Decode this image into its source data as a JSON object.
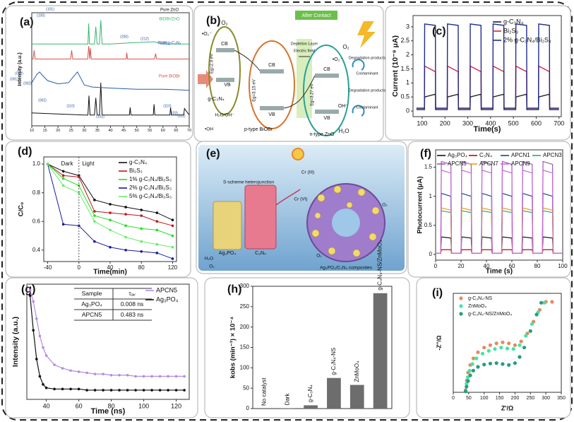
{
  "chart_data": [
    {
      "type": "line",
      "label": "(a)",
      "ylabel": "Intensity (a.u.)",
      "legend": "inline",
      "xlim": [
        10,
        70
      ],
      "ylim": [
        0,
        105
      ],
      "xticks": [
        10,
        15,
        20,
        25,
        30,
        35,
        40,
        45,
        50,
        55,
        60,
        65,
        70
      ],
      "series": [
        {
          "name": "Pure ZnO",
          "color": "#111111",
          "x": [
            10,
            20,
            30,
            31.4,
            31.8,
            32.2,
            33.9,
            34.4,
            34.9,
            35.8,
            36.3,
            36.8,
            40,
            47.2,
            47.5,
            47.8,
            56.3,
            56.6,
            56.9,
            62.6,
            62.9,
            63.2,
            66,
            67.9,
            68.2,
            70
          ],
          "values": [
            12,
            11,
            10,
            10,
            28,
            10,
            10,
            26,
            10,
            10,
            40,
            10,
            10,
            10,
            17,
            10,
            10,
            20,
            10,
            10,
            17,
            10,
            10,
            10,
            16,
            10
          ]
        },
        {
          "name": "Pure g-C₃N₄",
          "color": "#2a5caa",
          "x": [
            10,
            11,
            12,
            13,
            14,
            16,
            20,
            24,
            26,
            27.4,
            28.5,
            30,
            33,
            40,
            50,
            60,
            70
          ],
          "values": [
            40,
            44,
            48,
            50,
            47,
            42,
            39,
            40,
            46,
            50,
            45,
            38,
            36,
            35,
            34,
            34,
            33
          ]
        },
        {
          "name": "Pure BiOBr",
          "color": "#d9534f",
          "x": [
            10,
            10.5,
            10.9,
            11.3,
            15,
            20,
            24.8,
            25.2,
            25.6,
            31.3,
            31.7,
            32.1,
            32.3,
            32.7,
            40,
            46,
            46.2,
            46.5,
            50,
            56.8,
            57.2,
            57.6,
            60,
            70
          ],
          "values": [
            62,
            62,
            70,
            62,
            62,
            62,
            62,
            70,
            62,
            62,
            74,
            62,
            72,
            62,
            62,
            62,
            68,
            62,
            62,
            62,
            67,
            62,
            62,
            62
          ]
        },
        {
          "name": "BiOBr/ZnO",
          "color": "#3cb371",
          "x": [
            10,
            20,
            25,
            31.4,
            31.7,
            32.0,
            33.9,
            34.4,
            34.9,
            35.8,
            36.3,
            36.8,
            40,
            47.5,
            56.6,
            60,
            70
          ],
          "values": [
            76,
            76,
            76,
            76,
            95,
            76,
            76,
            92,
            76,
            76,
            98,
            76,
            76,
            77,
            78,
            76,
            76
          ]
        }
      ],
      "annotations": [
        "(001)",
        "(012)",
        "(002)",
        "(100)",
        "(002)",
        "(101)",
        "(110)",
        "(102)",
        "(200)",
        "(212)",
        "(220)",
        "(110)",
        "(103)",
        "(112)"
      ]
    },
    {
      "type": "line",
      "label": "(c)",
      "xlabel": "Time(s)",
      "ylabel": "Current (10⁻⁸ μA)",
      "legend": "upper right",
      "xlim": [
        60,
        710
      ],
      "ylim": [
        -0.2,
        3.4
      ],
      "xticks": [
        100,
        200,
        300,
        400,
        500,
        600,
        700
      ],
      "yticks": [
        0,
        0.5,
        1,
        1.5,
        2,
        2.5,
        3
      ],
      "x": [
        75,
        110,
        111,
        158,
        159,
        210,
        211,
        258,
        259,
        310,
        311,
        358,
        359,
        410,
        411,
        458,
        459,
        510,
        511,
        558,
        559,
        610,
        611,
        658,
        659,
        700
      ],
      "series": [
        {
          "name": "g-C₃N₄",
          "color": "#222222",
          "values": [
            0.05,
            0.05,
            0.5,
            0.6,
            0.05,
            0.05,
            0.5,
            0.6,
            0.05,
            0.05,
            0.5,
            0.6,
            0.05,
            0.05,
            0.5,
            0.6,
            0.05,
            0.05,
            0.5,
            0.6,
            0.05,
            0.05,
            0.5,
            0.6,
            0.05,
            0.05
          ]
        },
        {
          "name": "Bi₂S₃",
          "color": "#d4213d",
          "values": [
            0.1,
            0.1,
            1.6,
            1.4,
            0.1,
            0.1,
            1.6,
            1.4,
            0.1,
            0.1,
            1.6,
            1.4,
            0.1,
            0.1,
            1.6,
            1.4,
            0.1,
            0.1,
            1.6,
            1.4,
            0.1,
            0.1,
            1.6,
            1.4,
            0.1,
            0.1
          ]
        },
        {
          "name": "2% g-C₃N₄/Bi₂S₃",
          "color": "#1f2d8a",
          "values": [
            0.1,
            0.1,
            3.1,
            3.05,
            0.1,
            0.1,
            3.1,
            3.05,
            0.1,
            0.1,
            3.1,
            3.05,
            0.1,
            0.1,
            3.1,
            3.05,
            0.1,
            0.1,
            3.1,
            3.05,
            0.1,
            0.1,
            3.1,
            3.05,
            0.1,
            0.1
          ]
        }
      ]
    },
    {
      "type": "line",
      "label": "(d)",
      "xlabel": "Time(min)",
      "ylabel": "C/C₀",
      "legend": "upper right",
      "markers": true,
      "xlim": [
        -45,
        125
      ],
      "ylim": [
        0.32,
        1.05
      ],
      "xticks": [
        -40,
        0,
        40,
        80,
        120
      ],
      "yticks": [
        0.4,
        0.6,
        0.8,
        {
          "value": 1,
          "label": "1.0"
        }
      ],
      "x": [
        -40,
        -20,
        0,
        20,
        40,
        60,
        80,
        100,
        120
      ],
      "series": [
        {
          "name": "g-C₃N₄",
          "color": "#111111",
          "values": [
            1.0,
            0.95,
            0.92,
            0.75,
            0.72,
            0.7,
            0.68,
            0.66,
            0.61
          ]
        },
        {
          "name": "Bi₂S₃",
          "color": "#c0161b",
          "values": [
            1.0,
            0.92,
            0.91,
            0.67,
            0.66,
            0.65,
            0.64,
            0.6,
            0.57
          ]
        },
        {
          "name": "1% g-C₃N₄/Bi₂S₃",
          "color": "#22dd22",
          "values": [
            1.0,
            0.9,
            0.85,
            0.64,
            0.61,
            0.57,
            0.55,
            0.54,
            0.5
          ]
        },
        {
          "name": "2% g-C₃N₄/Bi₂S₃",
          "color": "#1a1a9c",
          "values": [
            1.0,
            0.58,
            0.57,
            0.46,
            0.42,
            0.4,
            0.39,
            0.38,
            0.34
          ]
        },
        {
          "name": "5% g-C₃N₄/Bi₂S₃",
          "color": "#66ee66",
          "values": [
            1.0,
            0.85,
            0.8,
            0.6,
            0.54,
            0.49,
            0.46,
            0.44,
            0.42
          ]
        }
      ],
      "annotations": [
        "Dark",
        "Light"
      ]
    },
    {
      "type": "line",
      "label": "(f)",
      "xlabel": "Time (s)",
      "ylabel": "Photocurrent (μA)",
      "legend": "top",
      "xlim": [
        0,
        100
      ],
      "ylim": [
        -0.1,
        1.8
      ],
      "xticks": [
        0,
        20,
        40,
        60,
        80,
        100
      ],
      "yticks": [
        0,
        0.5,
        1,
        1.5
      ],
      "x": [
        0,
        4,
        4.5,
        12,
        12.5,
        20,
        20.5,
        28,
        28.5,
        36,
        36.5,
        44,
        44.5,
        52,
        52.5,
        60,
        60.5,
        68,
        68.5,
        76,
        76.5,
        84,
        84.5,
        92,
        92.5,
        100
      ],
      "series": [
        {
          "name": "Ag₃PO₄",
          "color": "#111111",
          "values": [
            0.02,
            0.02,
            0.3,
            0.28,
            0.02,
            0.02,
            0.3,
            0.28,
            0.02,
            0.02,
            0.3,
            0.28,
            0.02,
            0.02,
            0.3,
            0.28,
            0.02,
            0.02,
            0.3,
            0.28,
            0.02,
            0.02,
            0.3,
            0.28,
            0.02,
            0.02
          ]
        },
        {
          "name": "C₃N₄",
          "color": "#cc0000",
          "values": [
            0.02,
            0.02,
            0.08,
            0.08,
            0.02,
            0.02,
            0.08,
            0.08,
            0.02,
            0.02,
            0.08,
            0.08,
            0.02,
            0.02,
            0.08,
            0.08,
            0.02,
            0.02,
            0.08,
            0.08,
            0.02,
            0.02,
            0.08,
            0.08,
            0.02,
            0.02
          ]
        },
        {
          "name": "APCN1",
          "color": "#1f3f9f",
          "values": [
            0.02,
            0.02,
            1.05,
            1.0,
            0.02,
            0.02,
            1.05,
            1.0,
            0.02,
            0.02,
            1.05,
            1.0,
            0.02,
            0.02,
            1.05,
            1.0,
            0.02,
            0.02,
            1.05,
            1.0,
            0.02,
            0.02,
            1.05,
            1.0,
            0.02,
            0.02
          ]
        },
        {
          "name": "APCN3",
          "color": "#2aa198",
          "values": [
            0.02,
            0.02,
            0.75,
            0.72,
            0.02,
            0.02,
            0.75,
            0.72,
            0.02,
            0.02,
            0.75,
            0.72,
            0.02,
            0.02,
            0.75,
            0.72,
            0.02,
            0.02,
            0.75,
            0.72,
            0.02,
            0.02,
            0.75,
            0.72,
            0.02,
            0.02
          ]
        },
        {
          "name": "APCN5",
          "color": "#9b59b6",
          "values": [
            0.02,
            0.02,
            1.6,
            1.55,
            0.02,
            0.02,
            1.6,
            1.55,
            0.02,
            0.02,
            1.6,
            1.55,
            0.02,
            0.02,
            1.6,
            1.55,
            0.02,
            0.02,
            1.6,
            1.55,
            0.02,
            0.02,
            1.6,
            1.55,
            0.02,
            0.02
          ]
        },
        {
          "name": "APCN7",
          "color": "#f39c12",
          "values": [
            0.02,
            0.02,
            0.8,
            0.76,
            0.02,
            0.02,
            0.8,
            0.76,
            0.02,
            0.02,
            0.8,
            0.76,
            0.02,
            0.02,
            0.8,
            0.76,
            0.02,
            0.02,
            0.8,
            0.76,
            0.02,
            0.02,
            0.8,
            0.76,
            0.02,
            0.02
          ]
        },
        {
          "name": "APCN9",
          "color": "#c66bd6",
          "values": [
            0.02,
            0.02,
            1.45,
            1.4,
            0.02,
            0.02,
            1.45,
            1.4,
            0.02,
            0.02,
            1.45,
            1.4,
            0.02,
            0.02,
            1.45,
            1.4,
            0.02,
            0.02,
            1.45,
            1.4,
            0.02,
            0.02,
            1.45,
            1.4,
            0.02,
            0.02
          ]
        }
      ]
    },
    {
      "type": "line",
      "label": "(g)",
      "xlabel": "Time (ns)",
      "ylabel": "Intensity (a.u.)",
      "legend": "upper right",
      "markers": true,
      "xlim": [
        28,
        128
      ],
      "ylim": [
        0,
        1
      ],
      "xticks": [
        40,
        60,
        80,
        100,
        120
      ],
      "x": [
        30,
        32,
        34,
        36,
        38,
        40,
        45,
        50,
        55,
        60,
        65,
        70,
        75,
        80,
        85,
        90,
        95,
        100,
        105,
        110,
        115,
        120,
        125
      ],
      "series": [
        {
          "name": "APCN5",
          "color": "#b48ae0",
          "values": [
            0.95,
            0.85,
            0.7,
            0.55,
            0.45,
            0.38,
            0.3,
            0.27,
            0.25,
            0.24,
            0.23,
            0.22,
            0.22,
            0.21,
            0.21,
            0.21,
            0.2,
            0.2,
            0.2,
            0.2,
            0.2,
            0.2,
            0.2
          ]
        },
        {
          "name": "Ag₃PO₄",
          "color": "#111111",
          "values": [
            0.9,
            0.6,
            0.35,
            0.2,
            0.13,
            0.1,
            0.09,
            0.09,
            0.09,
            0.09,
            0.08,
            0.08,
            0.08,
            0.08,
            0.08,
            0.08,
            0.08,
            0.08,
            0.08,
            0.08,
            0.08,
            0.08,
            0.08
          ]
        }
      ],
      "table": {
        "header": [
          "Sample",
          "τₐᵥ"
        ],
        "rows": [
          [
            "Ag₃PO₄",
            "0.008 ns"
          ],
          [
            "APCN5",
            "0.483 ns"
          ]
        ]
      }
    },
    {
      "type": "bar",
      "label": "(h)",
      "ylabel": "kobs (min⁻¹) × 10⁻⁴",
      "color": "#6d6d6d",
      "ylim": [
        0,
        300
      ],
      "yticks": [
        0,
        50,
        100,
        150,
        200,
        250,
        300
      ],
      "categories": [
        "No catalyst",
        "Dark",
        "g-C₃N₄",
        "g-C₃N₄-NS",
        "ZnMoO₄",
        "g-C₃N₄-NS/ZnMoO₄"
      ],
      "values": [
        0,
        1,
        8,
        75,
        58,
        283
      ]
    },
    {
      "type": "scatter",
      "label": "(i)",
      "xlabel": "Z'/Ω",
      "ylabel": "-Z''/Ω",
      "legend": "upper left",
      "xlim": [
        0,
        350
      ],
      "ylim": [
        0,
        210
      ],
      "xticks": [
        0,
        50,
        100,
        150,
        200,
        250,
        300,
        350
      ],
      "series": [
        {
          "name": "g-C₃N₄-NS",
          "color": "#e58a5d",
          "x": [
            40,
            44,
            48,
            55,
            65,
            80,
            100,
            120,
            140,
            160,
            180,
            200,
            220,
            240,
            260,
            280,
            300,
            320
          ],
          "values": [
            5,
            25,
            42,
            58,
            72,
            85,
            95,
            100,
            104,
            106,
            104,
            100,
            108,
            125,
            150,
            175,
            192,
            192
          ]
        },
        {
          "name": "ZnMoO₄",
          "color": "#3ee6a8",
          "x": [
            40,
            43,
            47,
            53,
            62,
            75,
            95,
            115,
            135,
            155,
            175,
            195,
            215,
            235,
            255,
            275,
            295
          ],
          "values": [
            3,
            18,
            32,
            46,
            60,
            72,
            82,
            88,
            92,
            95,
            93,
            92,
            100,
            120,
            145,
            170,
            190
          ]
        },
        {
          "name": "g-C₃N₄-NS/ZnMoO₄",
          "color": "#2a9b80",
          "x": [
            40,
            43,
            48,
            55,
            65,
            80,
            100,
            120,
            140,
            160,
            180,
            200,
            215,
            230,
            250,
            270,
            285
          ],
          "values": [
            2,
            12,
            24,
            36,
            46,
            54,
            59,
            61,
            62,
            60,
            58,
            62,
            75,
            95,
            130,
            165,
            190
          ]
        }
      ]
    }
  ],
  "diagrams": {
    "b": {
      "label": "(b)",
      "items": [
        "After Contact",
        "Depletion Layer",
        "Electric field",
        "O₂",
        "•O₂⁻",
        "CB",
        "VB",
        "Eg=2.9 eV",
        "g-C₃N₄",
        "CB",
        "VB",
        "Eg=3.15 eV",
        "p-type BiOBr",
        "H₂O/OH⁻",
        "•OH",
        "CB",
        "VB",
        "Eg=3.27 eV",
        "n-type ZnO",
        "O₂",
        "•O₂⁻",
        "Degradation products",
        "Contaminant",
        "Degradation products",
        "OH⁻",
        "Contaminant",
        "H₂O"
      ]
    },
    "e": {
      "label": "(e)",
      "items": [
        "S-scheme heterojunction",
        "Cr (III)",
        "Cr (VI)",
        "Ag₃PO₄",
        "C₃N₄",
        "Ag₃PO₄/C₃N₄ composites",
        "H₂O",
        "O₂",
        "O₂",
        "O₂"
      ]
    }
  }
}
